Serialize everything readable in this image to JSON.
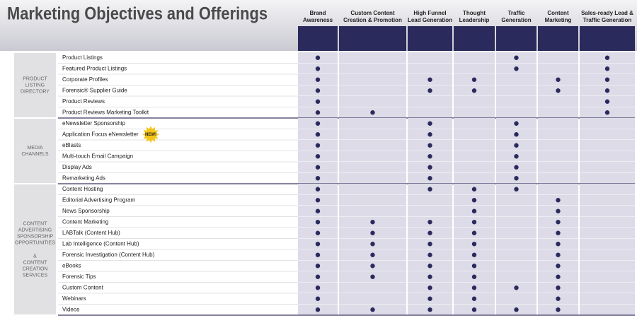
{
  "header": {
    "title": "Marketing Objectives and Offerings"
  },
  "columns": [
    {
      "lines": [
        "Brand",
        "Awareness"
      ]
    },
    {
      "lines": [
        "Custom Content",
        "Creation & Promotion"
      ]
    },
    {
      "lines": [
        "High Funnel",
        "Lead Generation"
      ]
    },
    {
      "lines": [
        "Thought",
        "Leadership"
      ]
    },
    {
      "lines": [
        "Traffic",
        "Generation"
      ]
    },
    {
      "lines": [
        "Content",
        "Marketing"
      ]
    },
    {
      "lines": [
        "Sales-ready Lead &",
        "Traffic Generation"
      ]
    }
  ],
  "groups": [
    {
      "lines": [
        "PRODUCT",
        "LISTING",
        "DIRECTORY"
      ],
      "rows": [
        {
          "label": "Product Listings",
          "marks": [
            true,
            false,
            false,
            false,
            true,
            false,
            true
          ]
        },
        {
          "label": "Featured Product Listings",
          "marks": [
            true,
            false,
            false,
            false,
            true,
            false,
            true
          ]
        },
        {
          "label": "Corporate Profiles",
          "marks": [
            true,
            false,
            true,
            true,
            false,
            true,
            true
          ]
        },
        {
          "label": "Forensic® Supplier Guide",
          "marks": [
            true,
            false,
            true,
            true,
            false,
            true,
            true
          ]
        },
        {
          "label": "Product Reviews",
          "marks": [
            true,
            false,
            false,
            false,
            false,
            false,
            true
          ]
        },
        {
          "label": "Product Reviews Marketing Toolkit",
          "marks": [
            true,
            true,
            false,
            false,
            false,
            false,
            true
          ]
        }
      ]
    },
    {
      "lines": [
        "MEDIA",
        "CHANNELS"
      ],
      "rows": [
        {
          "label": "eNewsletter Sponsorship",
          "marks": [
            true,
            false,
            true,
            false,
            true,
            false,
            false
          ]
        },
        {
          "label": "Application Focus eNewsletter",
          "badge": "NEW!",
          "marks": [
            true,
            false,
            true,
            false,
            true,
            false,
            false
          ]
        },
        {
          "label": "eBlasts",
          "marks": [
            true,
            false,
            true,
            false,
            true,
            false,
            false
          ]
        },
        {
          "label": "Multi-touch Email Campaign",
          "marks": [
            true,
            false,
            true,
            false,
            true,
            false,
            false
          ]
        },
        {
          "label": "Display Ads",
          "marks": [
            true,
            false,
            true,
            false,
            true,
            false,
            false
          ]
        },
        {
          "label": "Remarketing Ads",
          "marks": [
            true,
            false,
            true,
            false,
            true,
            false,
            false
          ]
        }
      ]
    },
    {
      "lines": [
        "CONTENT",
        "ADVERTISING",
        "SPONSORSHIP",
        "OPPORTUNITIES",
        "&",
        "CONTENT",
        "CREATION",
        "SERVICES"
      ],
      "rows": [
        {
          "label": "Content Hosting",
          "marks": [
            true,
            false,
            true,
            true,
            true,
            false,
            false
          ]
        },
        {
          "label": "Editorial Advertising Program",
          "marks": [
            true,
            false,
            false,
            true,
            false,
            true,
            false
          ]
        },
        {
          "label": "News Sponsorship",
          "marks": [
            true,
            false,
            false,
            true,
            false,
            true,
            false
          ]
        },
        {
          "label": "Content Marketing",
          "marks": [
            true,
            true,
            true,
            true,
            false,
            true,
            false
          ]
        },
        {
          "label": "LABTalk (Content Hub)",
          "marks": [
            true,
            true,
            true,
            true,
            false,
            true,
            false
          ]
        },
        {
          "label": "Lab Intelligence (Content Hub)",
          "marks": [
            true,
            true,
            true,
            true,
            false,
            true,
            false
          ]
        },
        {
          "label": "Forensic Investigation (Content Hub)",
          "marks": [
            true,
            true,
            true,
            true,
            false,
            true,
            false
          ]
        },
        {
          "label": "eBooks",
          "marks": [
            true,
            true,
            true,
            true,
            false,
            true,
            false
          ]
        },
        {
          "label": "Forensic Tips",
          "marks": [
            true,
            true,
            true,
            true,
            false,
            true,
            false
          ]
        },
        {
          "label": "Custom Content",
          "marks": [
            true,
            false,
            true,
            true,
            true,
            true,
            false
          ]
        },
        {
          "label": "Webinars",
          "marks": [
            true,
            false,
            true,
            true,
            false,
            true,
            false
          ]
        },
        {
          "label": "Videos",
          "marks": [
            true,
            true,
            true,
            true,
            true,
            true,
            false
          ]
        }
      ]
    }
  ]
}
